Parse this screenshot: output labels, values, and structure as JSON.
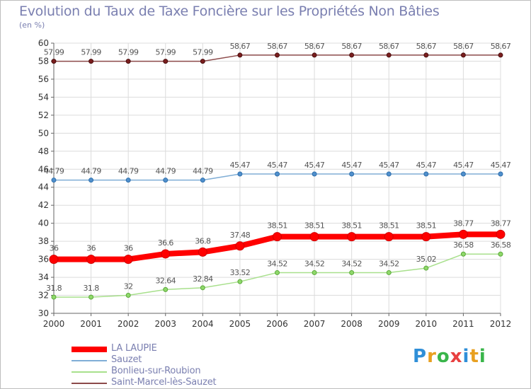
{
  "chart_data": {
    "type": "line",
    "title": "Evolution du Taux de Taxe Foncière sur les Propriétés Non Bâties",
    "ylabel": "(en %)",
    "xlabel": "",
    "ylim": [
      30,
      60
    ],
    "yticks": [
      30,
      32,
      34,
      36,
      38,
      40,
      42,
      44,
      46,
      48,
      50,
      52,
      54,
      56,
      58,
      60
    ],
    "categories": [
      "2000",
      "2001",
      "2002",
      "2003",
      "2004",
      "2005",
      "2006",
      "2007",
      "2008",
      "2009",
      "2010",
      "2011",
      "2012"
    ],
    "grid": true,
    "legend_position": "bottom-left",
    "series": [
      {
        "name": "LA LAUPIE",
        "color": "#ff0000",
        "values": [
          36,
          36,
          36,
          36.6,
          36.8,
          37.48,
          38.51,
          38.51,
          38.51,
          38.51,
          38.51,
          38.77,
          38.77
        ],
        "labels": [
          "36",
          "36",
          "36",
          "36.6",
          "36.8",
          "37.48",
          "38.51",
          "38.51",
          "38.51",
          "38.51",
          "38.51",
          "38.77",
          "38.77"
        ]
      },
      {
        "name": "Sauzet",
        "color": "#80aed6",
        "values": [
          44.79,
          44.79,
          44.79,
          44.79,
          44.79,
          45.47,
          45.47,
          45.47,
          45.47,
          45.47,
          45.47,
          45.47,
          45.47
        ],
        "labels": [
          "44.79",
          "44.79",
          "44.79",
          "44.79",
          "44.79",
          "45.47",
          "45.47",
          "45.47",
          "45.47",
          "45.47",
          "45.47",
          "45.47",
          "45.47"
        ]
      },
      {
        "name": "Bonlieu-sur-Roubion",
        "color": "#a8e08c",
        "values": [
          31.8,
          31.8,
          32,
          32.64,
          32.84,
          33.52,
          34.52,
          34.52,
          34.52,
          34.52,
          35.02,
          36.58,
          36.58
        ],
        "labels": [
          "31.8",
          "31.8",
          "32",
          "32.64",
          "32.84",
          "33.52",
          "34.52",
          "34.52",
          "34.52",
          "34.52",
          "35.02",
          "36.58",
          "36.58"
        ]
      },
      {
        "name": "Saint-Marcel-lès-Sauzet",
        "color": "#8c4a4a",
        "values": [
          57.99,
          57.99,
          57.99,
          57.99,
          57.99,
          58.67,
          58.67,
          58.67,
          58.67,
          58.67,
          58.67,
          58.67,
          58.67
        ],
        "labels": [
          "57.99",
          "57.99",
          "57.99",
          "57.99",
          "57.99",
          "58.67",
          "58.67",
          "58.67",
          "58.67",
          "58.67",
          "58.67",
          "58.67",
          "58.67"
        ]
      }
    ]
  },
  "branding": {
    "logo_text": "Proxiti"
  }
}
